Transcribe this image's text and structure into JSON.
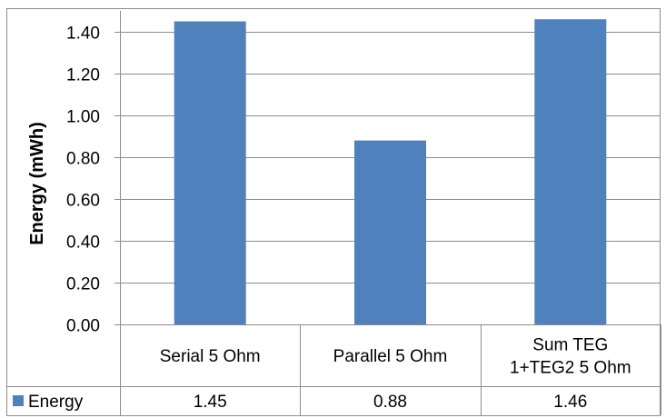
{
  "chart_data": {
    "type": "bar",
    "title": "",
    "xlabel": "",
    "ylabel": "Energy (mWh)",
    "ylim": [
      0,
      1.5
    ],
    "yticks": [
      "0.00",
      "0.20",
      "0.40",
      "0.60",
      "0.80",
      "1.00",
      "1.20",
      "1.40"
    ],
    "grid": true,
    "categories": [
      [
        "Serial 5 Ohm"
      ],
      [
        "Parallel 5 Ohm"
      ],
      [
        "Sum TEG",
        "1+TEG2 5 Ohm"
      ]
    ],
    "series": [
      {
        "name": "Energy",
        "values": [
          1.45,
          0.88,
          1.46
        ],
        "labels": [
          "1.45",
          "0.88",
          "1.46"
        ],
        "color": "#4f81bd"
      }
    ],
    "data_table": true
  }
}
